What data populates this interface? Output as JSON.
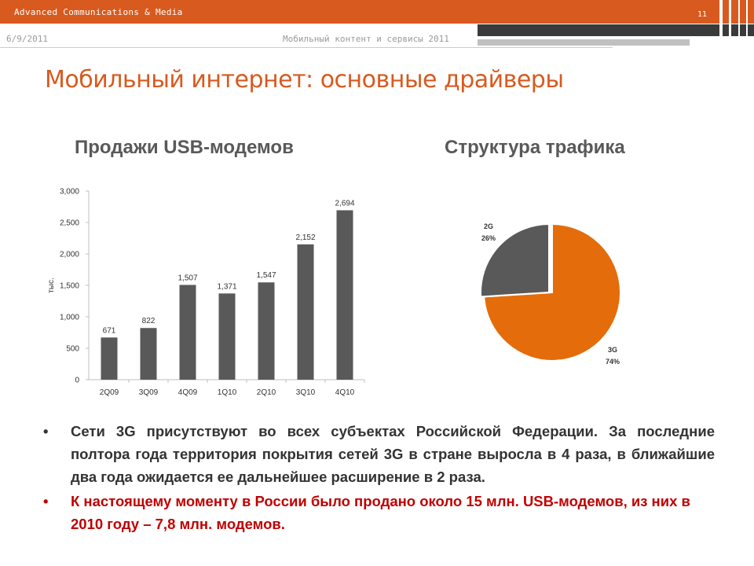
{
  "header": {
    "company": "Advanced Communications & Media",
    "page_number": "11",
    "date": "6/9/2011",
    "conference": "Мобильный контент и сервисы 2011"
  },
  "slide": {
    "title": "Мобильный интернет: основные драйверы",
    "bar_chart_title": "Продажи USB-модемов",
    "pie_chart_title": "Структура трафика",
    "bullets": [
      "Сети 3G присутствуют во всех субъектах Российской Федерации. За последние полтора года территория покрытия сетей 3G в стране выросла в 4 раза, в ближайшие два года ожидается ее дальнейшее расширение в 2 раза.",
      "К настоящему моменту в России было продано около 15 млн. USB-модемов, из них в 2010 году – 7,8 млн. модемов."
    ],
    "bullet_char": "•"
  },
  "colors": {
    "accent": "#d85a1e",
    "bar": "#595959",
    "pie_2g": "#595959",
    "pie_3g": "#e46c0a",
    "bullet_red": "#c00000"
  },
  "chart_data": [
    {
      "type": "bar",
      "title": "Продажи USB-модемов",
      "ylabel": "тыс.",
      "categories": [
        "2Q09",
        "3Q09",
        "4Q09",
        "1Q10",
        "2Q10",
        "3Q10",
        "4Q10"
      ],
      "values": [
        671,
        822,
        1507,
        1371,
        1547,
        2152,
        2694
      ],
      "data_labels": [
        "671",
        "822",
        "1,507",
        "1,371",
        "1,547",
        "2,152",
        "2,694"
      ],
      "ylim": [
        0,
        3000
      ],
      "yticks": [
        0,
        500,
        1000,
        1500,
        2000,
        2500,
        3000
      ],
      "ytick_labels": [
        "0",
        "500",
        "1,000",
        "1,500",
        "2,000",
        "2,500",
        "3,000"
      ],
      "grid": false
    },
    {
      "type": "pie",
      "title": "Структура трафика",
      "slices": [
        {
          "name": "3G",
          "value": 74,
          "label": "74%"
        },
        {
          "name": "2G",
          "value": 26,
          "label": "26%"
        }
      ]
    }
  ]
}
